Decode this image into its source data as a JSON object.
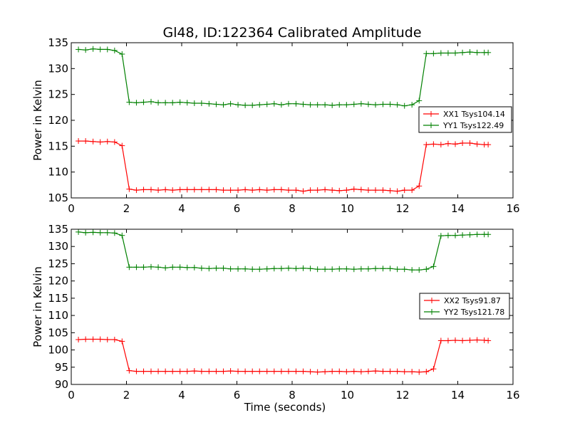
{
  "figure_title": "Gl48, ID:122364 Calibrated Amplitude",
  "chart_data": [
    {
      "type": "line",
      "title": "Gl48, ID:122364 Calibrated Amplitude",
      "xlabel": "",
      "ylabel": "Power in Kelvin",
      "xlim": [
        0,
        16
      ],
      "ylim": [
        105,
        135
      ],
      "xticks": [
        0,
        2,
        4,
        6,
        8,
        10,
        12,
        14,
        16
      ],
      "yticks": [
        105,
        110,
        115,
        120,
        125,
        130,
        135
      ],
      "legend_position": "center-right",
      "grid": false,
      "x": [
        0.26,
        0.52,
        0.79,
        1.05,
        1.31,
        1.57,
        1.84,
        2.1,
        2.36,
        2.62,
        2.89,
        3.15,
        3.41,
        3.67,
        3.94,
        4.2,
        4.46,
        4.72,
        4.99,
        5.25,
        5.51,
        5.77,
        6.04,
        6.3,
        6.56,
        6.82,
        7.09,
        7.35,
        7.61,
        7.87,
        8.14,
        8.4,
        8.66,
        8.92,
        9.19,
        9.45,
        9.71,
        9.97,
        10.24,
        10.5,
        10.76,
        11.02,
        11.29,
        11.55,
        11.81,
        12.07,
        12.34,
        12.6,
        12.86,
        13.12,
        13.39,
        13.65,
        13.91,
        14.17,
        14.44,
        14.7,
        14.96,
        15.1
      ],
      "series": [
        {
          "name": "XX1 Tsys104.14",
          "color": "#ff0000",
          "values": [
            116.0,
            116.0,
            115.9,
            115.8,
            115.9,
            115.8,
            115.1,
            106.7,
            106.5,
            106.6,
            106.6,
            106.5,
            106.6,
            106.5,
            106.6,
            106.6,
            106.6,
            106.6,
            106.6,
            106.6,
            106.5,
            106.5,
            106.5,
            106.6,
            106.5,
            106.6,
            106.5,
            106.6,
            106.6,
            106.5,
            106.5,
            106.3,
            106.5,
            106.5,
            106.6,
            106.5,
            106.4,
            106.5,
            106.7,
            106.6,
            106.5,
            106.5,
            106.5,
            106.4,
            106.3,
            106.5,
            106.5,
            107.3,
            115.3,
            115.4,
            115.3,
            115.5,
            115.4,
            115.6,
            115.6,
            115.4,
            115.3,
            115.3
          ]
        },
        {
          "name": "YY1 Tsys122.49",
          "color": "#008000",
          "values": [
            133.7,
            133.6,
            133.8,
            133.7,
            133.7,
            133.5,
            132.8,
            123.5,
            123.4,
            123.5,
            123.6,
            123.4,
            123.4,
            123.4,
            123.5,
            123.4,
            123.3,
            123.3,
            123.2,
            123.1,
            123.0,
            123.2,
            123.0,
            122.9,
            122.9,
            123.0,
            123.1,
            123.2,
            123.0,
            123.2,
            123.2,
            123.1,
            123.0,
            123.0,
            123.0,
            122.9,
            123.0,
            123.0,
            123.1,
            123.2,
            123.1,
            123.0,
            123.1,
            123.1,
            123.0,
            122.8,
            123.0,
            123.8,
            132.9,
            132.9,
            133.0,
            133.0,
            133.0,
            133.1,
            133.2,
            133.1,
            133.1,
            133.1
          ]
        }
      ]
    },
    {
      "type": "line",
      "title": "",
      "xlabel": "Time (seconds)",
      "ylabel": "Power in Kelvin",
      "xlim": [
        0,
        16
      ],
      "ylim": [
        90,
        135
      ],
      "xticks": [
        0,
        2,
        4,
        6,
        8,
        10,
        12,
        14,
        16
      ],
      "yticks": [
        90,
        95,
        100,
        105,
        110,
        115,
        120,
        125,
        130,
        135
      ],
      "legend_position": "center-right",
      "grid": false,
      "x": [
        0.26,
        0.52,
        0.79,
        1.05,
        1.31,
        1.57,
        1.84,
        2.1,
        2.36,
        2.62,
        2.89,
        3.15,
        3.41,
        3.67,
        3.94,
        4.2,
        4.46,
        4.72,
        4.99,
        5.25,
        5.51,
        5.77,
        6.04,
        6.3,
        6.56,
        6.82,
        7.09,
        7.35,
        7.61,
        7.87,
        8.14,
        8.4,
        8.66,
        8.92,
        9.19,
        9.45,
        9.71,
        9.97,
        10.24,
        10.5,
        10.76,
        11.02,
        11.29,
        11.55,
        11.81,
        12.07,
        12.34,
        12.6,
        12.86,
        13.12,
        13.39,
        13.65,
        13.91,
        14.17,
        14.44,
        14.7,
        14.96,
        15.1
      ],
      "series": [
        {
          "name": "XX2 Tsys91.87",
          "color": "#ff0000",
          "values": [
            103.0,
            103.1,
            103.1,
            103.1,
            103.0,
            103.0,
            102.5,
            94.0,
            93.8,
            93.8,
            93.8,
            93.8,
            93.8,
            93.8,
            93.8,
            93.8,
            93.9,
            93.8,
            93.8,
            93.8,
            93.8,
            93.9,
            93.8,
            93.8,
            93.8,
            93.8,
            93.8,
            93.8,
            93.8,
            93.8,
            93.8,
            93.8,
            93.7,
            93.6,
            93.7,
            93.8,
            93.8,
            93.7,
            93.8,
            93.7,
            93.8,
            93.9,
            93.8,
            93.8,
            93.8,
            93.7,
            93.7,
            93.6,
            93.7,
            94.5,
            102.7,
            102.7,
            102.8,
            102.7,
            102.8,
            102.9,
            102.8,
            102.7
          ]
        },
        {
          "name": "YY2 Tsys121.78",
          "color": "#008000",
          "values": [
            134.2,
            134.0,
            134.1,
            134.0,
            134.0,
            133.9,
            133.2,
            124.0,
            124.0,
            124.0,
            124.1,
            124.0,
            123.8,
            124.0,
            124.0,
            123.9,
            123.9,
            123.7,
            123.6,
            123.7,
            123.7,
            123.5,
            123.5,
            123.5,
            123.4,
            123.4,
            123.5,
            123.6,
            123.6,
            123.7,
            123.6,
            123.7,
            123.6,
            123.4,
            123.4,
            123.4,
            123.5,
            123.5,
            123.4,
            123.5,
            123.5,
            123.6,
            123.6,
            123.6,
            123.4,
            123.4,
            123.2,
            123.2,
            123.4,
            124.2,
            133.1,
            133.2,
            133.2,
            133.3,
            133.4,
            133.5,
            133.5,
            133.5
          ]
        }
      ]
    }
  ]
}
